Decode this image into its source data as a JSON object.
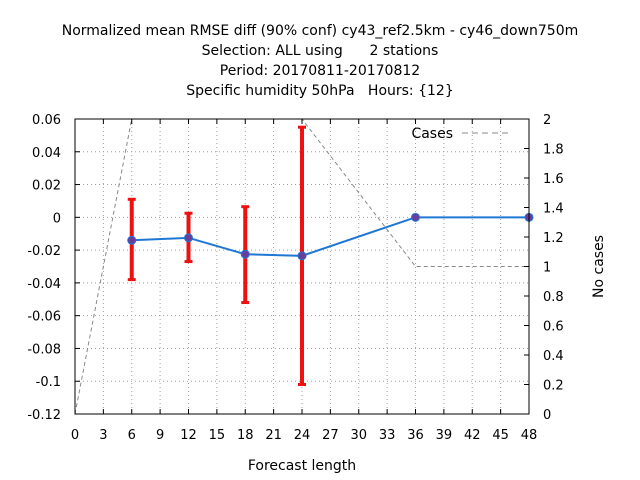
{
  "chart_data": {
    "type": "line",
    "title_lines": [
      "Normalized mean RMSE diff (90% conf) cy43_ref2.5km - cy46_down750m",
      "Selection: ALL using      2 stations",
      "Period: 20170811-20170812",
      "Specific humidity 50hPa   Hours: {12}"
    ],
    "xlabel": "Forecast length",
    "ylabel": "",
    "y2label": "No cases",
    "xlim": [
      0,
      48
    ],
    "ylim": [
      -0.12,
      0.06
    ],
    "y2lim": [
      0,
      2
    ],
    "x_ticks": [
      "0",
      "3",
      "6",
      "9",
      "12",
      "15",
      "18",
      "21",
      "24",
      "27",
      "30",
      "33",
      "36",
      "39",
      "42",
      "45",
      "48"
    ],
    "y_ticks": [
      "0.06",
      "0.04",
      "0.02",
      "0",
      "-0.02",
      "-0.04",
      "-0.06",
      "-0.08",
      "-0.1",
      "-0.12"
    ],
    "y2_ticks": [
      "2",
      "1.8",
      "1.6",
      "1.4",
      "1.2",
      "1",
      "0.8",
      "0.6",
      "0.4",
      "0.2",
      "0"
    ],
    "grid": true,
    "legend": {
      "position": "top-right",
      "entries": [
        "Cases"
      ]
    },
    "series": [
      {
        "axis": "y",
        "color": "#1f77d4",
        "marker_color": "#6a3d9a",
        "x": [
          6,
          12,
          18,
          24,
          36,
          48
        ],
        "values": [
          -0.014,
          -0.0125,
          -0.0225,
          -0.0235,
          0.0,
          0.0
        ],
        "errors": [
          {
            "x": 6,
            "low": -0.038,
            "high": 0.011
          },
          {
            "x": 12,
            "low": -0.027,
            "high": 0.0025
          },
          {
            "x": 18,
            "low": -0.052,
            "high": 0.0065
          },
          {
            "x": 24,
            "low": -0.102,
            "high": 0.055
          }
        ],
        "error_color": "#ee1111"
      },
      {
        "name": "Cases",
        "axis": "y2",
        "color": "#888888",
        "dashed": true,
        "x": [
          0,
          6,
          12,
          18,
          24,
          36,
          48
        ],
        "values": [
          0,
          2,
          2,
          2,
          2,
          1,
          1
        ]
      }
    ]
  }
}
